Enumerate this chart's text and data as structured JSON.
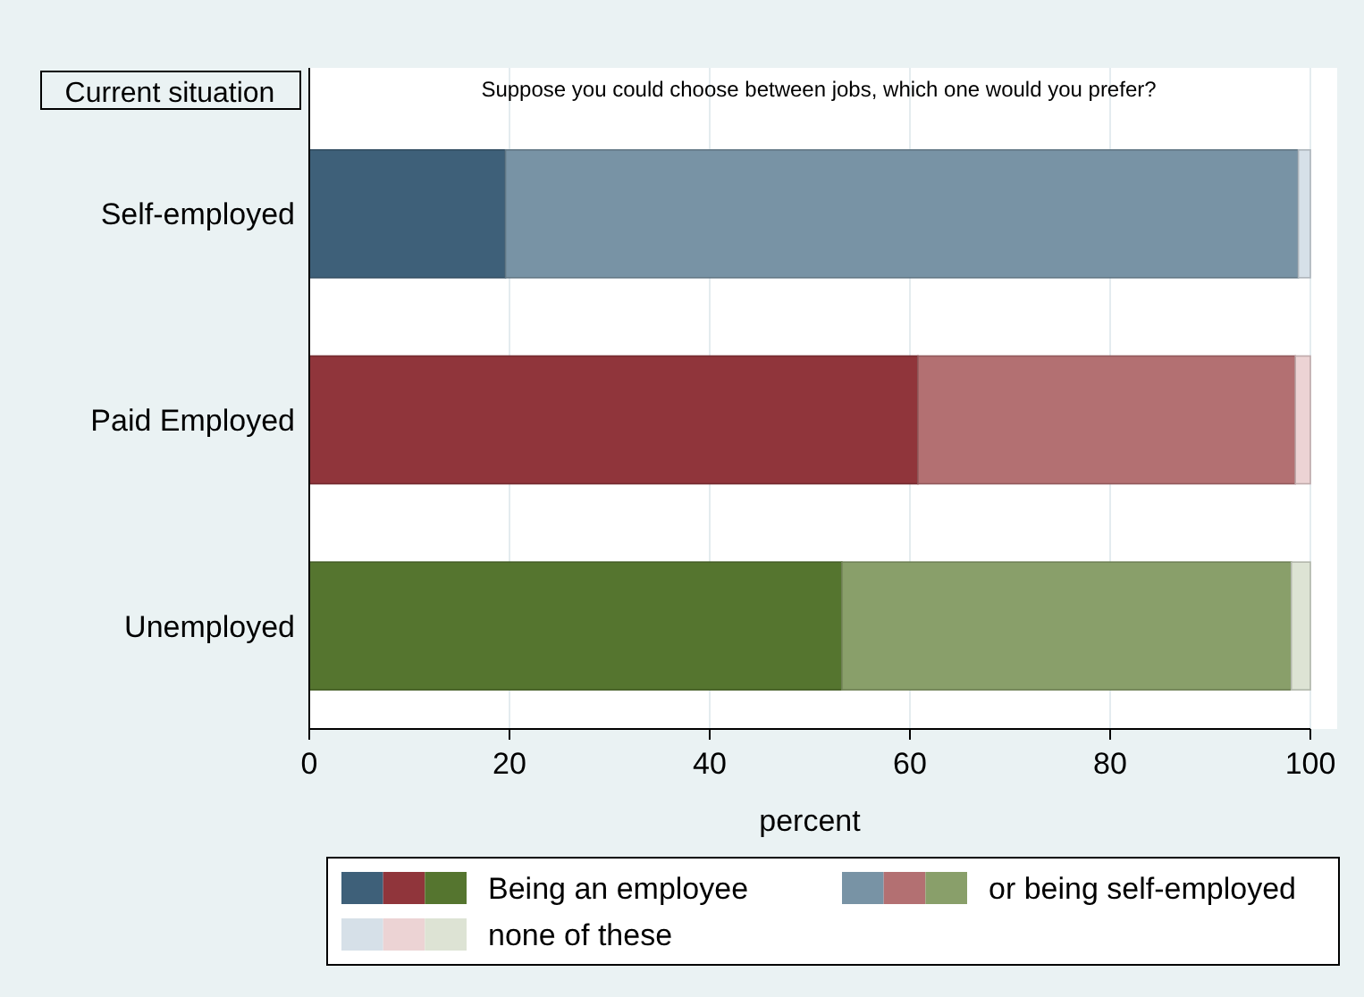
{
  "chart_data": {
    "type": "bar",
    "orientation": "horizontal",
    "stacked": true,
    "title": "Suppose you could choose between jobs, which one would you prefer?",
    "ylabel": "Current situation",
    "xlabel": "percent",
    "categories": [
      "Self-employed",
      "Paid Employed",
      "Unemployed"
    ],
    "series": [
      {
        "name": "Being an employee",
        "colors": [
          "#3e6079",
          "#90353b",
          "#55752f"
        ],
        "values": [
          19.6,
          60.8,
          53.2
        ]
      },
      {
        "name": "or being self-employed",
        "colors": [
          "#7893a5",
          "#b37072",
          "#899f6a"
        ],
        "values": [
          79.2,
          37.7,
          44.9
        ]
      },
      {
        "name": "none of these",
        "colors": [
          "#d6e0e8",
          "#ecd3d4",
          "#dde3d4"
        ],
        "values": [
          1.2,
          1.5,
          1.9
        ]
      }
    ],
    "xlim": [
      0,
      100
    ],
    "xticks": [
      0,
      20,
      40,
      60,
      80,
      100
    ],
    "grid": "x",
    "legend": "bottom"
  }
}
